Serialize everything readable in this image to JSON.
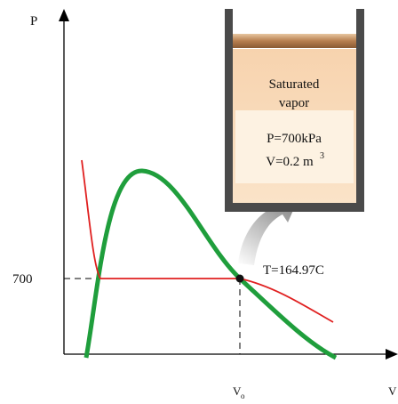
{
  "axes": {
    "y_label": "P",
    "x_label": "V",
    "pressure_label": "700",
    "volume_label": {
      "main": "V",
      "sub": "o"
    }
  },
  "annotation": "T=164.97C",
  "cylinder": {
    "line1": "Saturated",
    "line2": "vapor",
    "pressure": "P=700kPa",
    "volume": "V=0.2 m",
    "volume_exp": "3"
  }
}
